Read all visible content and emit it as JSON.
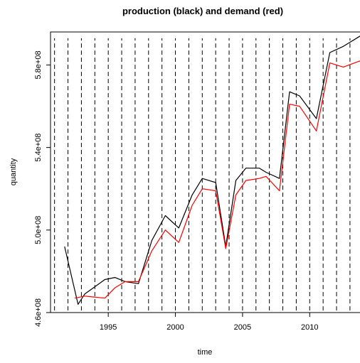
{
  "chart_data": {
    "type": "line",
    "title": "production (black) and demand (red)",
    "xlabel": "time",
    "ylabel": "quantity",
    "xlim": [
      1990.7,
      2013.8
    ],
    "ylim": [
      460000000,
      596000000
    ],
    "x_ticks": [
      1995,
      2000,
      2005,
      2010
    ],
    "x_tick_labels": [
      "1995",
      "2000",
      "2005",
      "2010"
    ],
    "y_ticks": [
      460000000,
      500000000,
      540000000,
      580000000
    ],
    "y_tick_labels": [
      "4.6e+08",
      "5.0e+08",
      "5.4e+08",
      "5.8e+08"
    ],
    "grid": false,
    "vlines": {
      "style": "dashed",
      "color": "#000000",
      "x": [
        1991,
        1992,
        1993,
        1994,
        1995,
        1996,
        1997,
        1998,
        1999,
        2000,
        2001,
        2002,
        2003,
        2004,
        2005,
        2006,
        2007,
        2008,
        2009,
        2010,
        2011,
        2012,
        2013
      ],
      "y_from": 461000000,
      "y_to": 593000000
    },
    "series": [
      {
        "color": "#000000",
        "x": [
          1991.75,
          1992.75,
          1993.25,
          1994.75,
          1995.5,
          1996.25,
          1997.25,
          1998.25,
          1999.25,
          2000.25,
          2001.25,
          2002.0,
          2003.0,
          2003.75,
          2004.5,
          2005.25,
          2006.25,
          2006.75,
          2007.75,
          2008.5,
          2009.25,
          2010.5,
          2011.5,
          2012.5,
          2013.75
        ],
        "y": [
          492000000,
          464000000,
          469000000,
          476000000,
          477000000,
          475000000,
          474000000,
          495000000,
          507000000,
          501000000,
          517000000,
          525000000,
          523000000,
          492000000,
          524000000,
          530000000,
          530000000,
          528000000,
          525000000,
          567000000,
          565000000,
          554000000,
          586000000,
          589000000,
          594000000
        ]
      },
      {
        "color": "#ff0000",
        "x": [
          1992.5,
          1993.25,
          1994.75,
          1995.5,
          1996.25,
          1997.25,
          1998.25,
          1999.25,
          2000.25,
          2001.25,
          2002.0,
          2003.0,
          2003.75,
          2004.5,
          2005.25,
          2006.25,
          2006.75,
          2007.75,
          2008.5,
          2009.25,
          2010.5,
          2011.5,
          2012.5,
          2013.75
        ],
        "y": [
          467000000,
          468000000,
          467000000,
          472000000,
          475000000,
          475000000,
          490000000,
          500000000,
          494000000,
          512000000,
          520000000,
          519000000,
          491000000,
          517000000,
          524000000,
          525000000,
          526000000,
          519000000,
          561000000,
          560000000,
          548000000,
          581000000,
          579000000,
          582000000
        ]
      }
    ]
  }
}
